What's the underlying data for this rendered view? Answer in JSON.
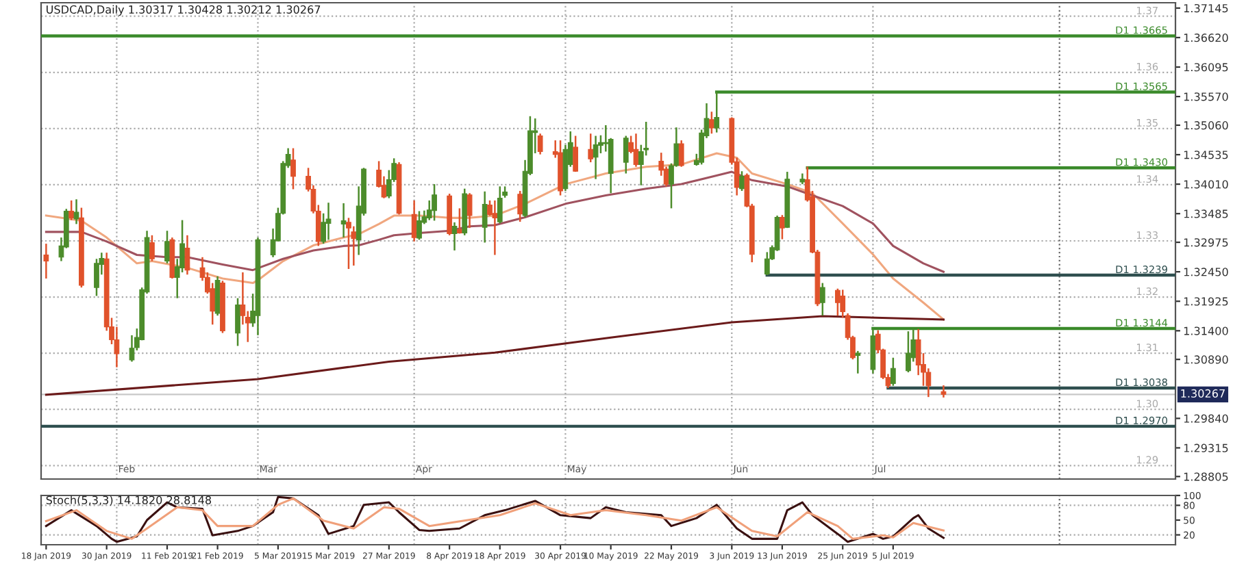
{
  "chart_data": [
    {
      "type": "candlestick",
      "title": "USDCAD,Daily 1.30317 1.30428 1.30212 1.30267",
      "colors": [
        "#e0522b",
        "#4c8c2b",
        "#4c8c2b",
        "#e0522b",
        "#4c8c2b",
        "#e0522b",
        "#4c8c2b",
        "#4c8c2b",
        "#e0522b",
        "#e0522b",
        "#e0522b",
        "#4c8c2b",
        "#4c8c2b",
        "#4c8c2b",
        "#4c8c2b",
        "#e0522b",
        "#4c8c2b",
        "#e0522b",
        "#4c8c2b",
        "#4c8c2b",
        "#e0522b",
        "#e0522b",
        "#e0522b",
        "#e0522b",
        "#4c8c2b",
        "#e0522b",
        "#4c8c2b",
        "#e0522b",
        "#e0522b",
        "#4c8c2b",
        "#4c8c2b",
        "#4c8c2b",
        "#4c8c2b",
        "#4c8c2b",
        "#4c8c2b",
        "#e0522b",
        "#e0522b",
        "#e0522b",
        "#e0522b",
        "#4c8c2b",
        "#4c8c2b",
        "#4c8c2b",
        "#e0522b",
        "#e0522b",
        "#4c8c2b",
        "#4c8c2b",
        "#e0522b",
        "#e0522b",
        "#4c8c2b",
        "#4c8c2b",
        "#e0522b",
        "#e0522b",
        "#4c8c2b",
        "#4c8c2b",
        "#4c8c2b",
        "#4c8c2b",
        "#e0522b",
        "#4c8c2b",
        "#e0522b",
        "#4c8c2b",
        "#e0522b",
        "#4c8c2b",
        "#e0522b",
        "#e0522b",
        "#4c8c2b",
        "#4c8c2b",
        "#e0522b",
        "#4c8c2b",
        "#4c8c2b",
        "#4c8c2b",
        "#e0522b",
        "#e0522b",
        "#e0522b",
        "#4c8c2b",
        "#4c8c2b",
        "#e0522b",
        "#e0522b",
        "#4c8c2b",
        "#4c8c2b",
        "#4c8c2b",
        "#4c8c2b",
        "#4c8c2b",
        "#e0522b",
        "#e0522b",
        "#4c8c2b",
        "#4c8c2b",
        "#e0522b",
        "#e0522b",
        "#4c8c2b",
        "#4c8c2b",
        "#e0522b",
        "#4c8c2b",
        "#4c8c2b",
        "#4c8c2b",
        "#e0522b",
        "#4c8c2b",
        "#e0522b",
        "#e0522b",
        "#4c8c2b",
        "#e0522b",
        "#e0522b",
        "#4c8c2b",
        "#4c8c2b",
        "#4c8c2b",
        "#e0522b",
        "#4c8c2b",
        "#4c8c2b",
        "#e0522b",
        "#e0522b",
        "#e0522b",
        "#4c8c2b",
        "#e0522b",
        "#e0522b",
        "#e0522b",
        "#e0522b",
        "#4c8c2b",
        "#4c8c2b",
        "#e0522b",
        "#e0522b",
        "#e0522b",
        "#4c8c2b",
        "#4c8c2b",
        "#4c8c2b",
        "#e0522b",
        "#e0522b",
        "#e0522b",
        "#e0522b"
      ],
      "x": [
        "2019-01-18",
        "2019-01-21",
        "2019-01-22",
        "2019-01-23",
        "2019-01-24",
        "2019-01-25",
        "2019-01-28",
        "2019-01-29",
        "2019-01-30",
        "2019-01-31",
        "2019-02-01",
        "2019-02-04",
        "2019-02-05",
        "2019-02-06",
        "2019-02-07",
        "2019-02-08",
        "2019-02-11",
        "2019-02-12",
        "2019-02-13",
        "2019-02-14",
        "2019-02-15",
        "2019-02-18",
        "2019-02-19",
        "2019-02-20",
        "2019-02-21",
        "2019-02-22",
        "2019-02-25",
        "2019-02-26",
        "2019-02-27",
        "2019-02-28",
        "2019-03-01",
        "2019-03-04",
        "2019-03-05",
        "2019-03-06",
        "2019-03-07",
        "2019-03-08",
        "2019-03-11",
        "2019-03-12",
        "2019-03-13",
        "2019-03-14",
        "2019-03-15",
        "2019-03-18",
        "2019-03-19",
        "2019-03-20",
        "2019-03-21",
        "2019-03-22",
        "2019-03-25",
        "2019-03-26",
        "2019-03-27",
        "2019-03-28",
        "2019-03-29",
        "2019-04-01",
        "2019-04-02",
        "2019-04-03",
        "2019-04-04",
        "2019-04-05",
        "2019-04-08",
        "2019-04-09",
        "2019-04-10",
        "2019-04-11",
        "2019-04-12",
        "2019-04-15",
        "2019-04-16",
        "2019-04-17",
        "2019-04-18",
        "2019-04-19",
        "2019-04-22",
        "2019-04-23",
        "2019-04-24",
        "2019-04-25",
        "2019-04-26",
        "2019-04-29",
        "2019-04-30",
        "2019-05-01",
        "2019-05-02",
        "2019-05-03",
        "2019-05-06",
        "2019-05-07",
        "2019-05-08",
        "2019-05-09",
        "2019-05-10",
        "2019-05-13",
        "2019-05-14",
        "2019-05-15",
        "2019-05-16",
        "2019-05-17",
        "2019-05-20",
        "2019-05-21",
        "2019-05-22",
        "2019-05-23",
        "2019-05-24",
        "2019-05-27",
        "2019-05-28",
        "2019-05-29",
        "2019-05-30",
        "2019-05-31",
        "2019-06-03",
        "2019-06-04",
        "2019-06-05",
        "2019-06-06",
        "2019-06-07",
        "2019-06-10",
        "2019-06-11",
        "2019-06-12",
        "2019-06-13",
        "2019-06-14",
        "2019-06-17",
        "2019-06-18",
        "2019-06-19",
        "2019-06-20",
        "2019-06-21",
        "2019-06-24",
        "2019-06-25",
        "2019-06-26",
        "2019-06-27",
        "2019-06-28",
        "2019-07-01",
        "2019-07-02",
        "2019-07-03",
        "2019-07-04",
        "2019-07-05",
        "2019-07-08",
        "2019-07-09",
        "2019-07-10",
        "2019-07-11",
        "2019-07-12",
        "2019-07-15"
      ],
      "ohlc": [
        [
          1.3275,
          1.3295,
          1.3233,
          1.3264
        ],
        [
          1.3271,
          1.3306,
          1.3264,
          1.3291
        ],
        [
          1.3289,
          1.3357,
          1.3287,
          1.3353
        ],
        [
          1.3353,
          1.3372,
          1.3337,
          1.3341
        ],
        [
          1.3339,
          1.3374,
          1.333,
          1.3351
        ],
        [
          1.3341,
          1.3359,
          1.3217,
          1.3221
        ],
        [
          1.3217,
          1.3268,
          1.3202,
          1.326
        ],
        [
          1.3258,
          1.3279,
          1.324,
          1.3269
        ],
        [
          1.3268,
          1.3279,
          1.314,
          1.3147
        ],
        [
          1.3147,
          1.3163,
          1.3116,
          1.3124
        ],
        [
          1.3124,
          1.3147,
          1.3075,
          1.3099
        ],
        [
          1.3088,
          1.3132,
          1.3085,
          1.3109
        ],
        [
          1.311,
          1.3144,
          1.3105,
          1.3128
        ],
        [
          1.3124,
          1.3217,
          1.3123,
          1.3213
        ],
        [
          1.3209,
          1.3318,
          1.3206,
          1.3306
        ],
        [
          1.3297,
          1.331,
          1.3264,
          1.3268
        ],
        [
          1.3264,
          1.3318,
          1.326,
          1.3299
        ],
        [
          1.3302,
          1.3306,
          1.3233,
          1.3235
        ],
        [
          1.3235,
          1.3268,
          1.3198,
          1.3254
        ],
        [
          1.3252,
          1.3337,
          1.3244,
          1.3295
        ],
        [
          1.3287,
          1.331,
          1.324,
          1.3248
        ],
        [
          1.3252,
          1.3271,
          1.3229,
          1.3235
        ],
        [
          1.3235,
          1.3244,
          1.3206,
          1.3209
        ],
        [
          1.3215,
          1.3225,
          1.3151,
          1.3175
        ],
        [
          1.3171,
          1.3237,
          1.3167,
          1.323
        ],
        [
          1.3225,
          1.3229,
          1.3136,
          1.314
        ],
        [
          1.3136,
          1.3198,
          1.3113,
          1.3186
        ],
        [
          1.3186,
          1.3244,
          1.3151,
          1.3167
        ],
        [
          1.3164,
          1.3175,
          1.312,
          1.3154
        ],
        [
          1.3154,
          1.3206,
          1.3147,
          1.3175
        ],
        [
          1.3167,
          1.3306,
          1.3132,
          1.3302
        ],
        [
          1.3275,
          1.3322,
          1.3271,
          1.3302
        ],
        [
          1.33,
          1.3359,
          1.3299,
          1.3349
        ],
        [
          1.3349,
          1.3442,
          1.3347,
          1.3438
        ],
        [
          1.3434,
          1.3465,
          1.343,
          1.3454
        ],
        [
          1.3444,
          1.3465,
          1.3392,
          1.3415
        ],
        [
          1.3415,
          1.343,
          1.3388,
          1.3392
        ],
        [
          1.3392,
          1.3399,
          1.3349,
          1.3353
        ],
        [
          1.3353,
          1.3364,
          1.3291,
          1.3299
        ],
        [
          1.3299,
          1.3349,
          1.3295,
          1.3333
        ],
        [
          1.3331,
          1.3368,
          1.3302,
          1.3339
        ],
        [
          1.333,
          1.3367,
          1.3306,
          1.3336
        ],
        [
          1.3333,
          1.3341,
          1.325,
          1.3323
        ],
        [
          1.3316,
          1.3326,
          1.3256,
          1.3304
        ],
        [
          1.3302,
          1.3397,
          1.3275,
          1.3362
        ],
        [
          1.3349,
          1.343,
          1.3345,
          1.3428
        ],
        [
          1.3426,
          1.3442,
          1.3395,
          1.3397
        ],
        [
          1.3399,
          1.3415,
          1.3376,
          1.3378
        ],
        [
          1.338,
          1.3426,
          1.3376,
          1.3409
        ],
        [
          1.3409,
          1.3447,
          1.3405,
          1.3438
        ],
        [
          1.3436,
          1.344,
          1.3347,
          1.3349
        ],
        [
          1.3347,
          1.3372,
          1.3299,
          1.3306
        ],
        [
          1.3305,
          1.3353,
          1.3302,
          1.3336
        ],
        [
          1.3333,
          1.3354,
          1.333,
          1.3343
        ],
        [
          1.3341,
          1.3372,
          1.3337,
          1.3355
        ],
        [
          1.3354,
          1.3401,
          1.3336,
          1.3382
        ],
        [
          1.338,
          1.3384,
          1.331,
          1.3313
        ],
        [
          1.3313,
          1.3333,
          1.3283,
          1.3326
        ],
        [
          1.332,
          1.3358,
          1.3313,
          1.3314
        ],
        [
          1.3314,
          1.3393,
          1.331,
          1.3384
        ],
        [
          1.3382,
          1.3385,
          1.3323,
          1.3345
        ],
        [
          1.3324,
          1.3388,
          1.3297,
          1.3365
        ],
        [
          1.3364,
          1.3372,
          1.3345,
          1.3347
        ],
        [
          1.3349,
          1.3372,
          1.3275,
          1.3341
        ],
        [
          1.3334,
          1.3397,
          1.3331,
          1.3376
        ],
        [
          1.3381,
          1.3397,
          1.3377,
          1.3387
        ],
        [
          1.3383,
          1.3389,
          1.3334,
          1.3348
        ],
        [
          1.3345,
          1.3444,
          1.3342,
          1.3424
        ],
        [
          1.342,
          1.3522,
          1.3417,
          1.3496
        ],
        [
          1.3493,
          1.3518,
          1.3456,
          1.3496
        ],
        [
          1.3487,
          1.3491,
          1.3454,
          1.3459
        ],
        [
          1.3459,
          1.3479,
          1.3448,
          1.3454
        ],
        [
          1.3457,
          1.3479,
          1.3381,
          1.3389
        ],
        [
          1.3393,
          1.3471,
          1.3389,
          1.3463
        ],
        [
          1.3436,
          1.3495,
          1.3432,
          1.3475
        ],
        [
          1.3467,
          1.3487,
          1.3423,
          1.3424
        ],
        [
          1.3463,
          1.3491,
          1.344,
          1.3446
        ],
        [
          1.3449,
          1.3487,
          1.341,
          1.3471
        ],
        [
          1.347,
          1.3488,
          1.3456,
          1.3475
        ],
        [
          1.3473,
          1.3506,
          1.3459,
          1.3475
        ],
        [
          1.342,
          1.3483,
          1.3385,
          1.3481
        ],
        [
          1.344,
          1.3487,
          1.342,
          1.3483
        ],
        [
          1.3475,
          1.3487,
          1.3456,
          1.3459
        ],
        [
          1.3463,
          1.3491,
          1.3432,
          1.3436
        ],
        [
          1.3436,
          1.3471,
          1.3399,
          1.3459
        ],
        [
          1.3462,
          1.3512,
          1.3452,
          1.3465
        ],
        [
          1.3442,
          1.3457,
          1.3416,
          1.3426
        ],
        [
          1.3428,
          1.3432,
          1.3397,
          1.3401
        ],
        [
          1.3401,
          1.3438,
          1.3358,
          1.3434
        ],
        [
          1.3434,
          1.3502,
          1.3432,
          1.3473
        ],
        [
          1.3473,
          1.3479,
          1.3432,
          1.3434
        ],
        [
          1.3436,
          1.3455,
          1.3434,
          1.3443
        ],
        [
          1.344,
          1.3498,
          1.3436,
          1.3492
        ],
        [
          1.3487,
          1.3545,
          1.3483,
          1.3518
        ],
        [
          1.3516,
          1.353,
          1.3491,
          1.3501
        ],
        [
          1.3501,
          1.3565,
          1.3493,
          1.352
        ],
        [
          1.3518,
          1.352,
          1.3436,
          1.344
        ],
        [
          1.3441,
          1.3448,
          1.3381,
          1.3395
        ],
        [
          1.3393,
          1.3424,
          1.3389,
          1.3415
        ],
        [
          1.3417,
          1.342,
          1.336,
          1.3362
        ],
        [
          1.3362,
          1.3366,
          1.3262,
          1.3276
        ],
        [
          1.3241,
          1.328,
          1.3239,
          1.3268
        ],
        [
          1.3268,
          1.3292,
          1.3266,
          1.3288
        ],
        [
          1.3284,
          1.3345,
          1.3282,
          1.3342
        ],
        [
          1.3342,
          1.3346,
          1.3303,
          1.3323
        ],
        [
          1.3324,
          1.3423,
          1.3323,
          1.341
        ],
        [
          1.3405,
          1.342,
          1.3401,
          1.341
        ],
        [
          1.3409,
          1.3432,
          1.337,
          1.3373
        ],
        [
          1.3379,
          1.3389,
          1.3278,
          1.328
        ],
        [
          1.328,
          1.3284,
          1.3184,
          1.3188
        ],
        [
          1.319,
          1.3225,
          1.3167,
          1.3217
        ],
        [
          1.3212,
          1.3215,
          1.3167,
          1.319
        ],
        [
          1.3202,
          1.3213,
          1.3163,
          1.3174
        ],
        [
          1.3167,
          1.3171,
          1.3124,
          1.3128
        ],
        [
          1.3128,
          1.3131,
          1.3089,
          1.3092
        ],
        [
          1.3096,
          1.3104,
          1.3064,
          1.31
        ],
        [
          1.3071,
          1.3143,
          1.3064,
          1.3131
        ],
        [
          1.3134,
          1.3141,
          1.31,
          1.3106
        ],
        [
          1.3106,
          1.3108,
          1.3054,
          1.3057
        ],
        [
          1.3057,
          1.3063,
          1.3038,
          1.3042
        ],
        [
          1.3046,
          1.3092,
          1.3042,
          1.3073
        ],
        [
          1.3069,
          1.3139,
          1.3066,
          1.31
        ],
        [
          1.3092,
          1.3143,
          1.3085,
          1.3124
        ],
        [
          1.3124,
          1.3143,
          1.3061,
          1.3079
        ],
        [
          1.308,
          1.31,
          1.3042,
          1.3066
        ],
        [
          1.3066,
          1.3073,
          1.3022,
          1.3042
        ],
        [
          1.30317,
          1.30428,
          1.30212,
          1.30267
        ]
      ],
      "series": [
        {
          "type": "line",
          "color": "#f0a77f",
          "x": [
            "2019-01-18",
            "2019-01-25",
            "2019-01-30",
            "2019-02-05",
            "2019-02-08",
            "2019-02-15",
            "2019-02-22",
            "2019-02-28",
            "2019-03-01",
            "2019-03-06",
            "2019-03-12",
            "2019-03-18",
            "2019-03-21",
            "2019-03-25",
            "2019-03-28",
            "2019-04-02",
            "2019-04-08",
            "2019-04-12",
            "2019-04-17",
            "2019-04-23",
            "2019-05-01",
            "2019-05-09",
            "2019-05-17",
            "2019-05-24",
            "2019-05-31",
            "2019-06-04",
            "2019-06-07",
            "2019-06-14",
            "2019-06-19",
            "2019-06-25",
            "2019-07-01",
            "2019-07-05",
            "2019-07-11",
            "2019-07-15"
          ],
          "values": [
            1.3345,
            1.3336,
            1.3306,
            1.326,
            1.3264,
            1.3252,
            1.3233,
            1.3225,
            1.323,
            1.3264,
            1.3292,
            1.3306,
            1.3312,
            1.333,
            1.3345,
            1.3345,
            1.3341,
            1.3341,
            1.3345,
            1.3366,
            1.3401,
            1.342,
            1.3432,
            1.3436,
            1.3456,
            1.3448,
            1.342,
            1.3401,
            1.3385,
            1.3331,
            1.3276,
            1.3233,
            1.319,
            1.316
          ]
        },
        {
          "type": "line",
          "color": "#a0525f",
          "x": [
            "2019-01-18",
            "2019-01-25",
            "2019-01-30",
            "2019-02-05",
            "2019-02-11",
            "2019-02-15",
            "2019-02-22",
            "2019-02-28",
            "2019-03-06",
            "2019-03-12",
            "2019-03-18",
            "2019-03-21",
            "2019-03-25",
            "2019-03-28",
            "2019-04-02",
            "2019-04-08",
            "2019-04-12",
            "2019-04-17",
            "2019-04-23",
            "2019-05-01",
            "2019-05-09",
            "2019-05-17",
            "2019-05-24",
            "2019-06-03",
            "2019-06-07",
            "2019-06-14",
            "2019-06-19",
            "2019-06-25",
            "2019-07-01",
            "2019-07-05",
            "2019-07-11",
            "2019-07-15"
          ],
          "values": [
            1.3316,
            1.3316,
            1.3299,
            1.3275,
            1.3271,
            1.3271,
            1.3258,
            1.3248,
            1.3268,
            1.3283,
            1.3291,
            1.3292,
            1.3302,
            1.331,
            1.3314,
            1.3318,
            1.3326,
            1.3328,
            1.3342,
            1.3366,
            1.3381,
            1.3393,
            1.3401,
            1.3423,
            1.3408,
            1.3397,
            1.3381,
            1.3362,
            1.3331,
            1.3291,
            1.326,
            1.3245
          ]
        },
        {
          "type": "line",
          "color": "#6b1a1a",
          "x": [
            "2019-01-18",
            "2019-03-01",
            "2019-03-27",
            "2019-04-17",
            "2019-05-10",
            "2019-06-03",
            "2019-06-21",
            "2019-07-15"
          ],
          "values": [
            1.3026,
            1.3054,
            1.3085,
            1.3101,
            1.3128,
            1.3155,
            1.3166,
            1.316
          ]
        },
        {
          "type": "line",
          "name": "D1 1.3665",
          "color": "#3a8a2a",
          "x": [
            "2019-01-17",
            "2019-08-30"
          ],
          "values": [
            1.3665,
            1.3665
          ]
        },
        {
          "type": "line",
          "name": "D1 1.3565",
          "color": "#3a8a2a",
          "x": [
            "2019-05-31",
            "2019-08-30"
          ],
          "values": [
            1.3565,
            1.3565
          ]
        },
        {
          "type": "line",
          "name": "D1 1.3430",
          "color": "#3a8a2a",
          "x": [
            "2019-06-18",
            "2019-08-30"
          ],
          "values": [
            1.343,
            1.343
          ]
        },
        {
          "type": "line",
          "name": "D1 1.3239",
          "color": "#2f4f4f",
          "x": [
            "2019-06-10",
            "2019-08-30"
          ],
          "values": [
            1.3239,
            1.3239
          ]
        },
        {
          "type": "line",
          "name": "D1 1.3144",
          "color": "#3a8a2a",
          "x": [
            "2019-07-01",
            "2019-08-30"
          ],
          "values": [
            1.3144,
            1.3144
          ]
        },
        {
          "type": "line",
          "name": "D1 1.3038",
          "color": "#2f4f4f",
          "x": [
            "2019-07-04",
            "2019-08-30"
          ],
          "values": [
            1.3038,
            1.3038
          ]
        },
        {
          "type": "line",
          "name": "D1 1.2970",
          "color": "#2f4f4f",
          "x": [
            "2019-01-17",
            "2019-08-30"
          ],
          "values": [
            1.297,
            1.297
          ]
        }
      ],
      "ref_lines": [
        {
          "axis": "y",
          "value": 1.37,
          "label": "1.37",
          "color": "#aaaaaa",
          "line_style": "dotted"
        },
        {
          "axis": "y",
          "value": 1.36,
          "label": "1.36",
          "color": "#aaaaaa",
          "line_style": "dotted"
        },
        {
          "axis": "y",
          "value": 1.35,
          "label": "1.35",
          "color": "#aaaaaa",
          "line_style": "dotted"
        },
        {
          "axis": "y",
          "value": 1.34,
          "label": "1.34",
          "color": "#aaaaaa",
          "line_style": "dotted"
        },
        {
          "axis": "y",
          "value": 1.33,
          "label": "1.33",
          "color": "#aaaaaa",
          "line_style": "dotted"
        },
        {
          "axis": "y",
          "value": 1.32,
          "label": "1.32",
          "color": "#aaaaaa",
          "line_style": "dotted"
        },
        {
          "axis": "y",
          "value": 1.31,
          "label": "1.31",
          "color": "#aaaaaa",
          "line_style": "dotted"
        },
        {
          "axis": "y",
          "value": 1.3,
          "label": "1.30",
          "color": "#aaaaaa",
          "line_style": "dotted"
        },
        {
          "axis": "y",
          "value": 1.29,
          "label": "1.29",
          "color": "#aaaaaa",
          "line_style": "dotted"
        },
        {
          "axis": "y",
          "value": 1.30267,
          "label": "1.30267",
          "color": "#c8c8c8",
          "line_style": "solid"
        },
        {
          "axis": "x",
          "value": "2019-02-01",
          "label": "Feb",
          "color": "#aaaaaa",
          "line_style": "dotted"
        },
        {
          "axis": "x",
          "value": "2019-03-01",
          "label": "Mar",
          "color": "#aaaaaa",
          "line_style": "dotted"
        },
        {
          "axis": "x",
          "value": "2019-04-01",
          "label": "Apr",
          "color": "#aaaaaa",
          "line_style": "dotted"
        },
        {
          "axis": "x",
          "value": "2019-05-01",
          "label": "May",
          "color": "#aaaaaa",
          "line_style": "dotted"
        },
        {
          "axis": "x",
          "value": "2019-06-03",
          "label": "Jun",
          "color": "#aaaaaa",
          "line_style": "dotted"
        },
        {
          "axis": "x",
          "value": "2019-07-01",
          "label": "Jul",
          "color": "#aaaaaa",
          "line_style": "dotted"
        },
        {
          "axis": "x",
          "value": "2019-08-07",
          "label": null,
          "color": "#666666",
          "line_style": "dotted"
        }
      ],
      "xlim": [
        "2019-01-17",
        "2019-08-30"
      ],
      "ylim": [
        1.2876,
        1.3724
      ],
      "yticks": [
        {
          "value": 1.37145,
          "label": "1.37145"
        },
        {
          "value": 1.3662,
          "label": "1.36620"
        },
        {
          "value": 1.36095,
          "label": "1.36095"
        },
        {
          "value": 1.3557,
          "label": "1.35570"
        },
        {
          "value": 1.3506,
          "label": "1.35060"
        },
        {
          "value": 1.34535,
          "label": "1.34535"
        },
        {
          "value": 1.3401,
          "label": "1.34010"
        },
        {
          "value": 1.33485,
          "label": "1.33485"
        },
        {
          "value": 1.32975,
          "label": "1.32975"
        },
        {
          "value": 1.3245,
          "label": "1.32450"
        },
        {
          "value": 1.31925,
          "label": "1.31925"
        },
        {
          "value": 1.314,
          "label": "1.31400"
        },
        {
          "value": 1.3089,
          "label": "1.30890"
        },
        {
          "value": 1.2984,
          "label": "1.29840"
        },
        {
          "value": 1.29315,
          "label": "1.29315"
        },
        {
          "value": 1.28805,
          "label": "1.28805"
        }
      ],
      "tick_labels": "y"
    },
    {
      "type": "line",
      "title": "Stoch(5,3,3) 14.1820 28.8148",
      "series": [
        {
          "type": "line",
          "color": "#3a1010",
          "x": [
            "2019-01-18",
            "2019-01-23",
            "2019-01-28",
            "2019-01-31",
            "2019-02-01",
            "2019-02-05",
            "2019-02-07",
            "2019-02-11",
            "2019-02-13",
            "2019-02-18",
            "2019-02-20",
            "2019-02-25",
            "2019-02-28",
            "2019-03-04",
            "2019-03-05",
            "2019-03-08",
            "2019-03-13",
            "2019-03-15",
            "2019-03-20",
            "2019-03-22",
            "2019-03-27",
            "2019-03-29",
            "2019-04-02",
            "2019-04-04",
            "2019-04-10",
            "2019-04-15",
            "2019-04-19",
            "2019-04-25",
            "2019-04-30",
            "2019-05-06",
            "2019-05-09",
            "2019-05-13",
            "2019-05-20",
            "2019-05-22",
            "2019-05-27",
            "2019-05-31",
            "2019-06-04",
            "2019-06-07",
            "2019-06-12",
            "2019-06-14",
            "2019-06-17",
            "2019-06-19",
            "2019-06-24",
            "2019-06-26",
            "2019-07-01",
            "2019-07-03",
            "2019-07-05",
            "2019-07-09",
            "2019-07-10",
            "2019-07-12",
            "2019-07-15"
          ],
          "values": [
            38,
            70,
            38,
            12,
            6,
            17,
            50,
            86,
            76,
            73,
            19,
            28,
            38,
            66,
            97,
            94,
            60,
            22,
            38,
            81,
            86,
            66,
            30,
            28,
            33,
            60,
            70,
            89,
            60,
            54,
            76,
            66,
            60,
            38,
            54,
            81,
            33,
            12,
            12,
            70,
            86,
            60,
            22,
            6,
            22,
            12,
            17,
            54,
            60,
            33,
            14
          ]
        },
        {
          "type": "line",
          "color": "#f0a07a",
          "x": [
            "2019-01-18",
            "2019-01-24",
            "2019-01-30",
            "2019-02-04",
            "2019-02-07",
            "2019-02-13",
            "2019-02-18",
            "2019-02-21",
            "2019-02-28",
            "2019-03-05",
            "2019-03-08",
            "2019-03-14",
            "2019-03-20",
            "2019-03-26",
            "2019-03-29",
            "2019-04-04",
            "2019-04-18",
            "2019-04-25",
            "2019-05-02",
            "2019-05-09",
            "2019-05-17",
            "2019-05-24",
            "2019-05-31",
            "2019-06-07",
            "2019-06-12",
            "2019-06-18",
            "2019-06-24",
            "2019-06-27",
            "2019-07-03",
            "2019-07-05",
            "2019-07-09",
            "2019-07-15"
          ],
          "values": [
            48,
            70,
            28,
            12,
            33,
            76,
            70,
            38,
            38,
            81,
            94,
            49,
            33,
            76,
            73,
            38,
            60,
            84,
            60,
            70,
            60,
            49,
            76,
            28,
            17,
            66,
            38,
            12,
            19,
            15,
            44,
            29
          ]
        }
      ],
      "ref_lines": [
        {
          "axis": "y",
          "value": 80,
          "color": "#aaaaaa",
          "line_style": "dotted"
        },
        {
          "axis": "y",
          "value": 20,
          "color": "#aaaaaa",
          "line_style": "dotted"
        },
        {
          "axis": "x",
          "value": "2019-02-01",
          "color": "#aaaaaa",
          "line_style": "dotted"
        },
        {
          "axis": "x",
          "value": "2019-03-01",
          "color": "#aaaaaa",
          "line_style": "dotted"
        },
        {
          "axis": "x",
          "value": "2019-04-01",
          "color": "#aaaaaa",
          "line_style": "dotted"
        },
        {
          "axis": "x",
          "value": "2019-05-01",
          "color": "#aaaaaa",
          "line_style": "dotted"
        },
        {
          "axis": "x",
          "value": "2019-06-03",
          "color": "#aaaaaa",
          "line_style": "dotted"
        },
        {
          "axis": "x",
          "value": "2019-07-01",
          "color": "#aaaaaa",
          "line_style": "dotted"
        },
        {
          "axis": "x",
          "value": "2019-08-07",
          "color": "#666666",
          "line_style": "dotted"
        }
      ],
      "xlim": [
        "2019-01-17",
        "2019-08-30"
      ],
      "ylim": [
        0,
        100
      ],
      "yticks": [
        20,
        50,
        80,
        100
      ],
      "xticks": [
        {
          "value": "2019-01-18",
          "label": "18 Jan 2019"
        },
        {
          "value": "2019-01-30",
          "label": "30 Jan 2019"
        },
        {
          "value": "2019-02-11",
          "label": "11 Feb 2019"
        },
        {
          "value": "2019-02-21",
          "label": "21 Feb 2019"
        },
        {
          "value": "2019-03-05",
          "label": "5 Mar 2019"
        },
        {
          "value": "2019-03-15",
          "label": "15 Mar 2019"
        },
        {
          "value": "2019-03-27",
          "label": "27 Mar 2019"
        },
        {
          "value": "2019-04-08",
          "label": "8 Apr 2019"
        },
        {
          "value": "2019-04-18",
          "label": "18 Apr 2019"
        },
        {
          "value": "2019-04-30",
          "label": "30 Apr 2019"
        },
        {
          "value": "2019-05-10",
          "label": "10 May 2019"
        },
        {
          "value": "2019-05-22",
          "label": "22 May 2019"
        },
        {
          "value": "2019-06-03",
          "label": "3 Jun 2019"
        },
        {
          "value": "2019-06-13",
          "label": "13 Jun 2019"
        },
        {
          "value": "2019-06-25",
          "label": "25 Jun 2019"
        },
        {
          "value": "2019-07-05",
          "label": "5 Jul 2019"
        }
      ]
    }
  ]
}
